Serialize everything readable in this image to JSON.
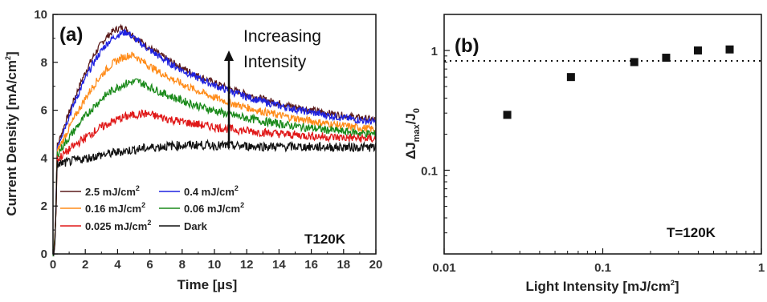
{
  "chart_data": [
    {
      "type": "line",
      "panel_label": "(a)",
      "xlabel_text": "Time [",
      "xlabel_unit": "µs",
      "xlabel_close": "]",
      "ylabel_text": "Current Density [mA/cm",
      "ylabel_sup": "2",
      "ylabel_close": "]",
      "xlim": [
        0,
        20
      ],
      "ylim": [
        0,
        10
      ],
      "xticks": [
        0,
        2,
        4,
        6,
        8,
        10,
        12,
        14,
        16,
        18,
        20
      ],
      "yticks": [
        0,
        2,
        4,
        6,
        8,
        10
      ],
      "annotation_line1": "Increasing",
      "annotation_line2": "Intensity",
      "corner_label": "T120K",
      "series": [
        {
          "name": "2.5 mJ/cm",
          "sup": "2",
          "color": "#5a1a1a",
          "peak": 9.45,
          "tpeak": 4.4,
          "end": 5.6,
          "start_rise": 4.0
        },
        {
          "name": "0.4 mJ/cm",
          "sup": "2",
          "color": "#1f22e0",
          "peak": 9.25,
          "tpeak": 4.6,
          "end": 5.5,
          "start_rise": 4.0
        },
        {
          "name": "0.16 mJ/cm",
          "sup": "2",
          "color": "#ff8c1a",
          "peak": 8.3,
          "tpeak": 5.0,
          "end": 5.2,
          "start_rise": 3.9
        },
        {
          "name": "0.06 mJ/cm",
          "sup": "2",
          "color": "#1a8a1a",
          "peak": 7.2,
          "tpeak": 5.3,
          "end": 5.0,
          "start_rise": 3.9
        },
        {
          "name": "0.025 mJ/cm",
          "sup": "2",
          "color": "#e01818",
          "peak": 5.85,
          "tpeak": 5.8,
          "end": 4.8,
          "start_rise": 3.8
        },
        {
          "name": "Dark",
          "sup": "",
          "color": "#111111",
          "peak": 4.55,
          "tpeak": 9.0,
          "end": 4.45,
          "start_rise": 3.7
        }
      ]
    },
    {
      "type": "scatter",
      "panel_label": "(b)",
      "xscale": "log",
      "yscale": "log",
      "xlabel_text": "Light Intensity [mJ/cm",
      "xlabel_sup": "2",
      "xlabel_close": "]",
      "ylabel_delta": "ΔJ",
      "ylabel_sub1": "max",
      "ylabel_slash": "/J",
      "ylabel_sub2": "0",
      "xlim": [
        0.01,
        1
      ],
      "ylim": [
        0.02,
        2
      ],
      "xtick_labels": [
        "0.01",
        "0.1",
        "1"
      ],
      "ytick_labels": [
        "0.1",
        "1"
      ],
      "reference_line_y": 1,
      "corner_label": "T=120K",
      "points": [
        {
          "x": 0.025,
          "y": 0.29
        },
        {
          "x": 0.063,
          "y": 0.6
        },
        {
          "x": 0.158,
          "y": 0.8
        },
        {
          "x": 0.251,
          "y": 0.87
        },
        {
          "x": 0.398,
          "y": 1.0
        },
        {
          "x": 0.631,
          "y": 1.02
        }
      ]
    }
  ]
}
